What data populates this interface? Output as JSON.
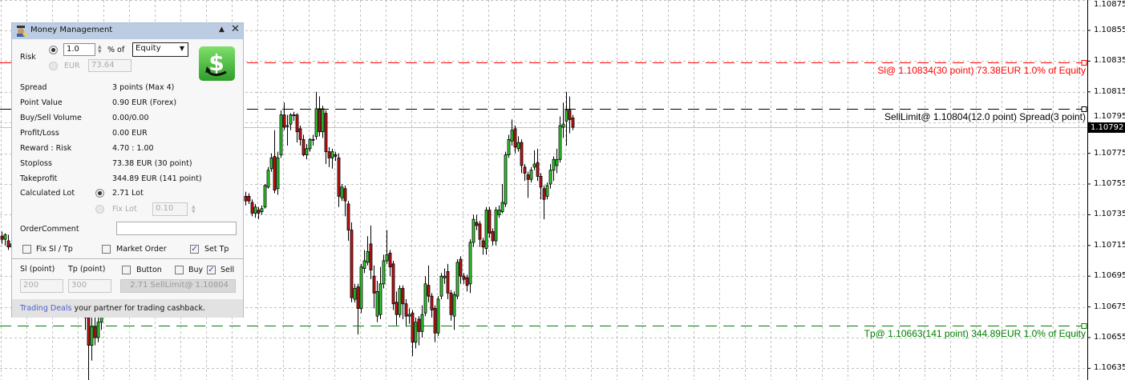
{
  "panel": {
    "title": "Money Management",
    "minimize_icon": "triangle-up",
    "close_icon": "x",
    "risk_label": "Risk",
    "risk_percent_value": "1.0",
    "percent_of_label": "% of",
    "risk_base_selected": "Equity",
    "eur_label": "EUR",
    "eur_value": "73.64",
    "trade_button_icon": "green-dollar-refresh",
    "rows": [
      {
        "label": "Spread",
        "value": "3 points  (Max 4)"
      },
      {
        "label": "Point Value",
        "value": "0.90 EUR (Forex)"
      },
      {
        "label": "Buy/Sell Volume",
        "value": "0.00/0.00"
      },
      {
        "label": "Profit/Loss",
        "value": "0.00 EUR"
      },
      {
        "label": "Reward : Risk",
        "value": "4.70 : 1.00"
      },
      {
        "label": "Stoploss",
        "value": "73.38 EUR (30 point)"
      },
      {
        "label": "Takeprofit",
        "value": "344.89 EUR (141 point)"
      }
    ],
    "calculated_lot_label": "Calculated Lot",
    "calculated_lot_value": "2.71 Lot",
    "fix_lot_label": "Fix Lot",
    "fix_lot_value": "0.10",
    "order_comment_label": "OrderComment",
    "order_comment_value": "",
    "fix_sl_tp_label": "Fix Sl / Tp",
    "fix_sl_tp_checked": false,
    "market_order_label": "Market Order",
    "market_order_checked": false,
    "set_tp_label": "Set Tp",
    "set_tp_checked": true,
    "sl_point_label": "Sl (point)",
    "tp_point_label": "Tp (point)",
    "sl_point_value": "200",
    "tp_point_value": "300",
    "button_label": "Button",
    "button_checked": false,
    "buy_label": "Buy",
    "buy_checked": false,
    "sell_label": "Sell",
    "sell_checked": true,
    "order_button_label": "2.71 SellLimit@ 1.10804",
    "footer_link": "Trading Deals",
    "footer_text": " your partner for trading cashback."
  },
  "chart": {
    "price_ticks": [
      "1.10875",
      "1.10855",
      "1.10835",
      "1.10815",
      "1.10795",
      "1.10775",
      "1.10755",
      "1.10735",
      "1.10715",
      "1.10695",
      "1.10675",
      "1.10655",
      "1.10635"
    ],
    "current_price": "1.10792",
    "colors": {
      "bull": "#2fd02f",
      "bear": "#c81414",
      "sl": "#ff0000",
      "entry": "#000000",
      "tp": "#008000",
      "grid": "#c0c0c0",
      "bid": "#c0c0c0"
    },
    "levels": [
      {
        "name": "sl",
        "price": 1.10834,
        "label": "Sl@ 1.10834(30 point) 73.38EUR 1.0% of Equity"
      },
      {
        "name": "entry",
        "price": 1.10804,
        "label": "SellLimit@ 1.10804(12.0 point) Spread(3 point)"
      },
      {
        "name": "tp",
        "price": 1.10663,
        "label": "Tp@ 1.10663(141 point) 344.89EUR 1.0% of Equity"
      }
    ],
    "candles_ohlc": [
      [
        1.10721,
        1.10724,
        1.10716,
        1.10719
      ],
      [
        1.10719,
        1.10723,
        1.10715,
        1.10722
      ],
      [
        1.10718,
        1.10722,
        1.10712,
        1.10714
      ],
      [
        1.10714,
        1.10717,
        1.1071,
        1.10716
      ],
      null,
      null,
      null,
      null,
      null,
      null,
      null,
      null,
      null,
      null,
      null,
      null,
      null,
      null,
      null,
      null,
      null,
      null,
      null,
      null,
      null,
      null,
      [
        1.1068,
        1.1069,
        1.1066,
        1.10668
      ],
      [
        1.10668,
        1.10675,
        1.10627,
        1.1065
      ],
      [
        1.1065,
        1.10668,
        1.1064,
        1.10662
      ],
      [
        1.10662,
        1.10672,
        1.1065,
        1.10655
      ],
      [
        1.10655,
        1.10668,
        1.10652,
        1.10665
      ],
      [
        1.10665,
        1.1068,
        1.1066,
        1.10676
      ],
      [
        1.10676,
        1.1069,
        1.10668,
        1.10685
      ],
      [
        1.10685,
        1.107,
        1.10675,
        1.10695
      ],
      null,
      null,
      null,
      null,
      null,
      null,
      null,
      null,
      null,
      null,
      null,
      null,
      null,
      null,
      null,
      null,
      null,
      null,
      null,
      null,
      null,
      null,
      null,
      null,
      null,
      null,
      null,
      null,
      null,
      null,
      null,
      null,
      null,
      null,
      null,
      null,
      null,
      null,
      null,
      null,
      null,
      null,
      [
        1.10747,
        1.1075,
        1.10741,
        1.10744
      ],
      [
        1.10747,
        1.10749,
        1.10742,
        1.10744
      ],
      [
        1.10743,
        1.10745,
        1.10734,
        1.10736
      ],
      [
        1.10736,
        1.10742,
        1.10733,
        1.1074
      ],
      [
        1.10738,
        1.1074,
        1.10732,
        1.10736
      ],
      [
        1.10737,
        1.10741,
        1.10735,
        1.10739
      ],
      [
        1.1074,
        1.10755,
        1.10739,
        1.10754
      ],
      [
        1.10753,
        1.10766,
        1.10752,
        1.10764
      ],
      [
        1.10765,
        1.10775,
        1.10763,
        1.10772
      ],
      [
        1.10773,
        1.1079,
        1.10749,
        1.10751
      ],
      [
        1.10752,
        1.10776,
        1.10748,
        1.10772
      ],
      [
        1.10774,
        1.10803,
        1.10772,
        1.108
      ],
      [
        1.108,
        1.10808,
        1.1079,
        1.10792
      ],
      [
        1.10793,
        1.108,
        1.1078,
        1.10793
      ],
      [
        1.10794,
        1.10801,
        1.1079,
        1.108
      ],
      [
        1.108,
        1.10802,
        1.10796,
        1.108
      ],
      [
        1.108,
        1.10801,
        1.10782,
        1.10789
      ],
      [
        1.10791,
        1.10793,
        1.1078,
        1.10784
      ],
      [
        1.10784,
        1.10787,
        1.10773,
        1.10774
      ],
      [
        1.10774,
        1.10781,
        1.10771,
        1.10778
      ],
      [
        1.10778,
        1.10785,
        1.10776,
        1.10784
      ],
      [
        1.10784,
        1.10787,
        1.1078,
        1.10784
      ],
      [
        1.10786,
        1.10815,
        1.10784,
        1.10804
      ],
      [
        1.10804,
        1.10812,
        1.10786,
        1.10789
      ],
      [
        1.10789,
        1.10806,
        1.10785,
        1.10804
      ],
      [
        1.10801,
        1.10803,
        1.10768,
        1.10776
      ],
      [
        1.10776,
        1.10779,
        1.10766,
        1.10772
      ],
      [
        1.10772,
        1.10778,
        1.10765,
        1.10776
      ],
      [
        1.10774,
        1.10776,
        1.1077,
        1.10773
      ],
      [
        1.10772,
        1.10775,
        1.1074,
        1.10747
      ],
      [
        1.10746,
        1.10755,
        1.10744,
        1.10753
      ],
      [
        1.10752,
        1.10754,
        1.10734,
        1.10744
      ],
      [
        1.10742,
        1.10744,
        1.10718,
        1.10725
      ],
      [
        1.10725,
        1.1073,
        1.10678,
        1.10681
      ],
      [
        1.1068,
        1.1069,
        1.10678,
        1.10687
      ],
      [
        1.10688,
        1.1069,
        1.10657,
        1.10674
      ],
      [
        1.10674,
        1.10703,
        1.10671,
        1.10701
      ],
      [
        1.107,
        1.10712,
        1.10697,
        1.10705
      ],
      [
        1.10704,
        1.10721,
        1.10702,
        1.10711
      ],
      [
        1.10716,
        1.10728,
        1.10693,
        1.10699
      ],
      [
        1.10695,
        1.10702,
        1.10674,
        1.10684
      ],
      [
        1.10669,
        1.10692,
        1.10665,
        1.10685
      ],
      [
        1.1067,
        1.10701,
        1.10667,
        1.1069
      ],
      [
        1.1069,
        1.10709,
        1.10687,
        1.10705
      ],
      [
        1.10705,
        1.10725,
        1.10703,
        1.10709
      ],
      [
        1.1071,
        1.10712,
        1.10695,
        1.10701
      ],
      [
        1.10703,
        1.10705,
        1.10673,
        1.10677
      ],
      [
        1.10678,
        1.10685,
        1.10663,
        1.1067
      ],
      [
        1.1067,
        1.10689,
        1.10668,
        1.10687
      ],
      [
        1.10687,
        1.10689,
        1.10667,
        1.10677
      ],
      [
        1.10677,
        1.1068,
        1.10662,
        1.10669
      ],
      [
        1.10669,
        1.10674,
        1.10664,
        1.1067
      ],
      [
        1.10671,
        1.10673,
        1.10643,
        1.10652
      ],
      [
        1.10652,
        1.10668,
        1.10648,
        1.10665
      ],
      [
        1.10667,
        1.10669,
        1.1065,
        1.10659
      ],
      [
        1.10659,
        1.10676,
        1.10655,
        1.1067
      ],
      [
        1.10671,
        1.10695,
        1.10669,
        1.1069
      ],
      [
        1.10689,
        1.10702,
        1.10678,
        1.10682
      ],
      [
        1.10682,
        1.10684,
        1.10668,
        1.10673
      ],
      [
        1.10674,
        1.10676,
        1.10652,
        1.10658
      ],
      [
        1.10658,
        1.10682,
        1.10656,
        1.1068
      ],
      [
        1.10682,
        1.10697,
        1.1068,
        1.10695
      ],
      [
        1.10694,
        1.107,
        1.1069,
        1.10695
      ],
      [
        1.10698,
        1.10703,
        1.1068,
        1.10684
      ],
      [
        1.10684,
        1.10686,
        1.10666,
        1.1067
      ],
      [
        1.10669,
        1.10685,
        1.1066,
        1.10683
      ],
      [
        1.10682,
        1.10706,
        1.1068,
        1.10704
      ],
      [
        1.10706,
        1.10708,
        1.1069,
        1.10695
      ],
      [
        1.10695,
        1.10697,
        1.1069,
        1.10693
      ],
      [
        1.10694,
        1.10696,
        1.10685,
        1.10689
      ],
      [
        1.1069,
        1.10719,
        1.10684,
        1.10717
      ],
      [
        1.10717,
        1.10735,
        1.10714,
        1.10732
      ],
      [
        1.1073,
        1.10735,
        1.10725,
        1.10728
      ],
      [
        1.10729,
        1.10731,
        1.10714,
        1.10719
      ],
      [
        1.10718,
        1.1072,
        1.10709,
        1.10714
      ],
      [
        1.10713,
        1.1074,
        1.10709,
        1.10738
      ],
      [
        1.10738,
        1.1074,
        1.1072,
        1.10723
      ],
      [
        1.10724,
        1.10726,
        1.10715,
        1.10718
      ],
      [
        1.10718,
        1.1074,
        1.10715,
        1.10738
      ],
      [
        1.10735,
        1.10741,
        1.10733,
        1.10738
      ],
      [
        1.10737,
        1.10755,
        1.10736,
        1.10743
      ],
      [
        1.10742,
        1.10776,
        1.1074,
        1.10774
      ],
      [
        1.10774,
        1.10787,
        1.10772,
        1.10784
      ],
      [
        1.10783,
        1.10797,
        1.1078,
        1.1079
      ],
      [
        1.10791,
        1.10793,
        1.10775,
        1.10779
      ],
      [
        1.10778,
        1.10786,
        1.10776,
        1.10782
      ],
      [
        1.10782,
        1.10784,
        1.10762,
        1.10767
      ],
      [
        1.10766,
        1.10768,
        1.10757,
        1.10762
      ],
      [
        1.10761,
        1.10763,
        1.10746,
        1.10758
      ],
      [
        1.10758,
        1.10766,
        1.10756,
        1.10764
      ],
      [
        1.10766,
        1.10777,
        1.10764,
        1.10768
      ],
      [
        1.10769,
        1.10778,
        1.10757,
        1.1076
      ],
      [
        1.1076,
        1.10762,
        1.10745,
        1.10753
      ],
      [
        1.10752,
        1.10754,
        1.10732,
        1.10745
      ],
      [
        1.10747,
        1.10756,
        1.10745,
        1.10754
      ],
      [
        1.10755,
        1.10768,
        1.10752,
        1.10764
      ],
      [
        1.10764,
        1.10773,
        1.10757,
        1.10771
      ],
      [
        1.10767,
        1.10778,
        1.10762,
        1.10771
      ],
      [
        1.10771,
        1.10799,
        1.10769,
        1.10793
      ],
      [
        1.10792,
        1.10808,
        1.10785,
        1.10794
      ],
      [
        1.10796,
        1.10815,
        1.1078,
        1.10803
      ],
      [
        1.10803,
        1.10812,
        1.10788,
        1.10797
      ],
      [
        1.10798,
        1.108,
        1.1079,
        1.10792
      ]
    ]
  }
}
